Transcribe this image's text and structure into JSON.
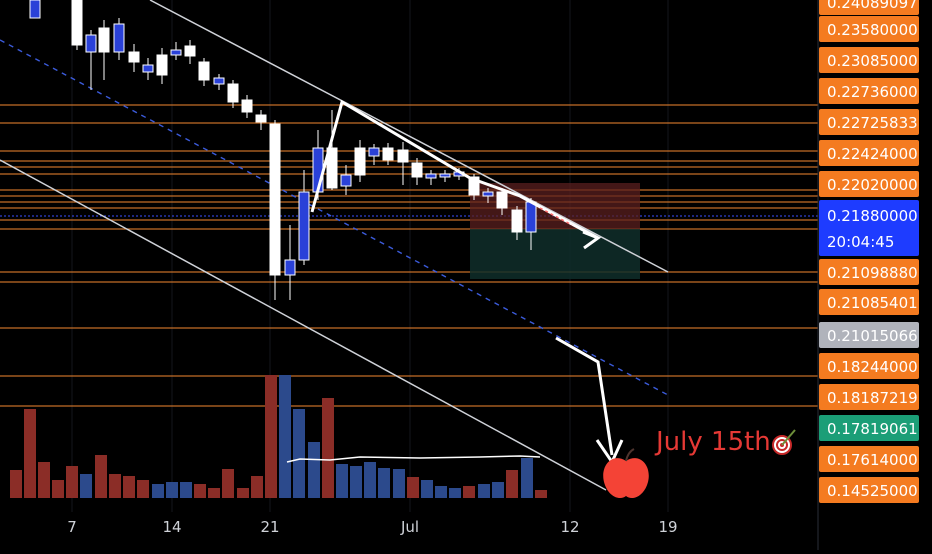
{
  "chart_data": {
    "type": "candlestick",
    "title": "",
    "xlabel": "",
    "ylabel": "",
    "annotation": "July 15th",
    "x_tick_labels": [
      "7",
      "14",
      "21",
      "Jul",
      "12",
      "19"
    ],
    "price_levels": [
      {
        "label": "0.24089097",
        "color": "#f47b20"
      },
      {
        "label": "0.23580000",
        "color": "#f47b20"
      },
      {
        "label": "0.23085000",
        "color": "#f47b20"
      },
      {
        "label": "0.22736000",
        "color": "#f47b20"
      },
      {
        "label": "0.22725833",
        "color": "#f47b20"
      },
      {
        "label": "0.22424000",
        "color": "#f47b20"
      },
      {
        "label": "0.22020000",
        "color": "#f47b20"
      },
      {
        "label": "0.21098880",
        "color": "#f47b20"
      },
      {
        "label": "0.21085401",
        "color": "#f47b20"
      },
      {
        "label": "0.21015066",
        "color": "#b0b3bb"
      },
      {
        "label": "0.18244000",
        "color": "#f47b20"
      },
      {
        "label": "0.18187219",
        "color": "#f47b20"
      },
      {
        "label": "0.17819061",
        "color": "#1b9e77"
      },
      {
        "label": "0.17614000",
        "color": "#f47b20"
      },
      {
        "label": "0.14525000",
        "color": "#f47b20"
      }
    ],
    "current_price": {
      "label": "0.21880000",
      "countdown": "20:04:45",
      "color": "#1e3cff"
    },
    "colors": {
      "up_candle": "#2a41d8",
      "down_candle": "#ffffff",
      "up_volume": "#2c4a8c",
      "down_volume": "#8b2d27",
      "level_line": "#d97a2b",
      "trend_line": "#cfd2d8",
      "annotation": "#e53935"
    }
  }
}
